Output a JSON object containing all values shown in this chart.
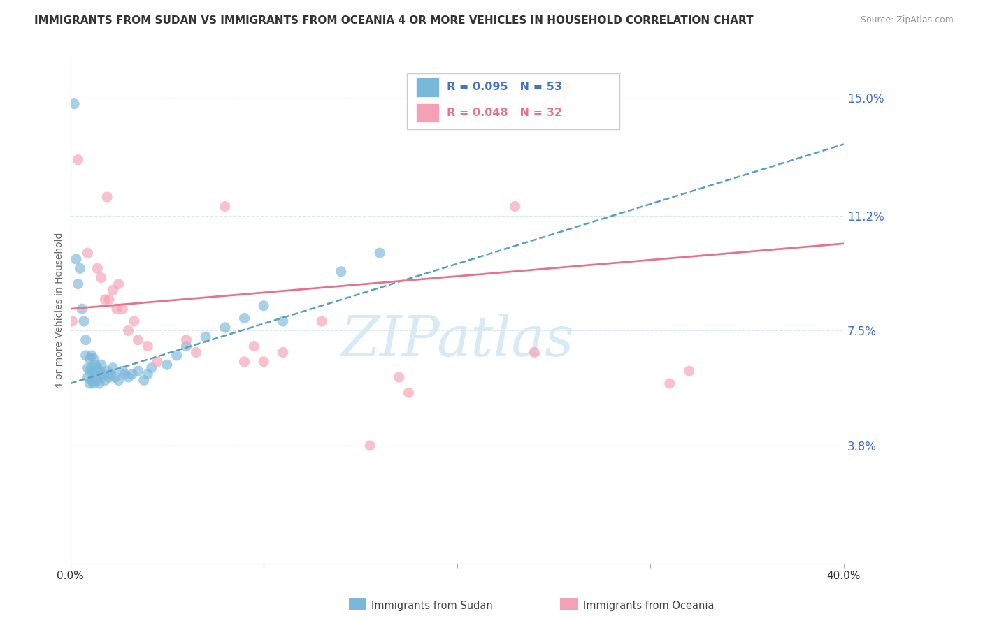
{
  "title": "IMMIGRANTS FROM SUDAN VS IMMIGRANTS FROM OCEANIA 4 OR MORE VEHICLES IN HOUSEHOLD CORRELATION CHART",
  "source": "Source: ZipAtlas.com",
  "ytick_labels": [
    "3.8%",
    "7.5%",
    "11.2%",
    "15.0%"
  ],
  "ytick_values": [
    0.038,
    0.075,
    0.112,
    0.15
  ],
  "xmin": 0.0,
  "xmax": 0.4,
  "ymin": 0.0,
  "ymax": 0.163,
  "sudan_color": "#7ab8d9",
  "oceania_color": "#f4a0b5",
  "oceania_line_color": "#e8728a",
  "sudan_line_color": "#5a9dc5",
  "watermark_color": "#d8eaf5",
  "grid_color": "#d8e8f0",
  "sudan_x": [
    0.002,
    0.003,
    0.004,
    0.005,
    0.006,
    0.007,
    0.008,
    0.008,
    0.009,
    0.009,
    0.01,
    0.01,
    0.01,
    0.011,
    0.011,
    0.011,
    0.012,
    0.012,
    0.012,
    0.013,
    0.013,
    0.014,
    0.014,
    0.015,
    0.015,
    0.016,
    0.016,
    0.017,
    0.018,
    0.019,
    0.02,
    0.021,
    0.022,
    0.023,
    0.025,
    0.027,
    0.028,
    0.03,
    0.032,
    0.035,
    0.038,
    0.04,
    0.042,
    0.05,
    0.055,
    0.06,
    0.07,
    0.08,
    0.09,
    0.1,
    0.11,
    0.14,
    0.16
  ],
  "sudan_y": [
    0.148,
    0.098,
    0.09,
    0.095,
    0.082,
    0.078,
    0.067,
    0.072,
    0.06,
    0.063,
    0.058,
    0.062,
    0.066,
    0.059,
    0.063,
    0.067,
    0.058,
    0.062,
    0.066,
    0.06,
    0.064,
    0.059,
    0.063,
    0.058,
    0.062,
    0.06,
    0.064,
    0.061,
    0.059,
    0.062,
    0.06,
    0.061,
    0.063,
    0.06,
    0.059,
    0.062,
    0.061,
    0.06,
    0.061,
    0.062,
    0.059,
    0.061,
    0.063,
    0.064,
    0.067,
    0.07,
    0.073,
    0.076,
    0.079,
    0.083,
    0.078,
    0.094,
    0.1
  ],
  "oceania_x": [
    0.001,
    0.004,
    0.009,
    0.014,
    0.016,
    0.018,
    0.019,
    0.02,
    0.022,
    0.024,
    0.025,
    0.027,
    0.03,
    0.033,
    0.035,
    0.04,
    0.045,
    0.06,
    0.065,
    0.08,
    0.09,
    0.095,
    0.1,
    0.11,
    0.13,
    0.155,
    0.17,
    0.175,
    0.23,
    0.24,
    0.31,
    0.32
  ],
  "oceania_y": [
    0.078,
    0.13,
    0.1,
    0.095,
    0.092,
    0.085,
    0.118,
    0.085,
    0.088,
    0.082,
    0.09,
    0.082,
    0.075,
    0.078,
    0.072,
    0.07,
    0.065,
    0.072,
    0.068,
    0.115,
    0.065,
    0.07,
    0.065,
    0.068,
    0.078,
    0.038,
    0.06,
    0.055,
    0.115,
    0.068,
    0.058,
    0.062
  ]
}
